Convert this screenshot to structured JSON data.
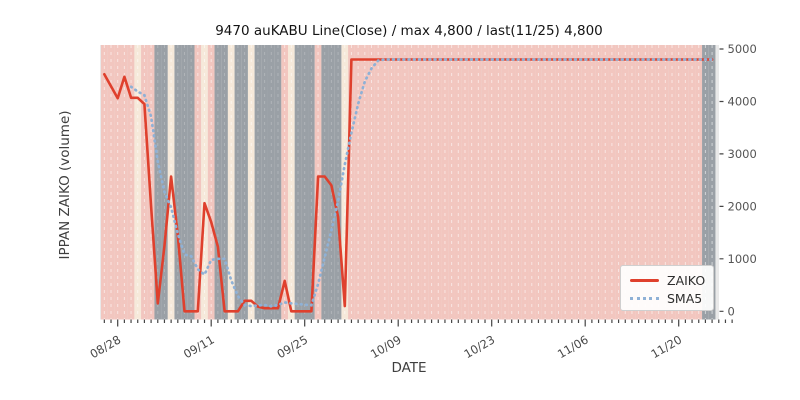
{
  "title": "9470 auKABU Line(Close) / max 4,800 / last(11/25) 4,800",
  "legend": {
    "position": "lower right",
    "items": [
      {
        "label": "ZAIKO",
        "style": "solid",
        "color": "#df402d"
      },
      {
        "label": "SMA5",
        "style": "dotted",
        "color": "#8fb1d6"
      }
    ]
  },
  "colors": {
    "band_pink": "#f2c6bf",
    "band_cream": "#f6e9da",
    "band_gray": "#9aa0a6",
    "plot_bg": "#e9e9e9",
    "gridline": "#ffffff",
    "zaiko_line": "#df402d",
    "sma5_line": "#8fb1d6",
    "tick": "#444444"
  },
  "chart_data": {
    "type": "line",
    "title": "9470 auKABU Line(Close) / max 4,800 / last(11/25) 4,800",
    "xlabel": "DATE",
    "ylabel": "IPPAN ZAIKO (volume)",
    "ylim": [
      0,
      5000
    ],
    "y_ticks": [
      0,
      1000,
      2000,
      3000,
      4000,
      5000
    ],
    "y_axis_side": "right",
    "x_major_ticks": [
      "08/28",
      "09/11",
      "09/25",
      "10/09",
      "10/23",
      "11/06",
      "11/20"
    ],
    "grid": "vertical-daily-white-dashed",
    "max_value": 4800,
    "last_date": "11/25",
    "last_value": 4800,
    "x": [
      "08/26",
      "08/27",
      "08/28",
      "08/29",
      "08/30",
      "08/31",
      "09/01",
      "09/02",
      "09/03",
      "09/04",
      "09/05",
      "09/06",
      "09/07",
      "09/08",
      "09/09",
      "09/10",
      "09/11",
      "09/12",
      "09/13",
      "09/14",
      "09/15",
      "09/16",
      "09/17",
      "09/18",
      "09/19",
      "09/20",
      "09/21",
      "09/22",
      "09/23",
      "09/24",
      "09/25",
      "09/26",
      "09/27",
      "09/28",
      "09/29",
      "09/30",
      "10/01",
      "10/02",
      "10/03",
      "10/04",
      "10/05",
      "10/06",
      "10/07",
      "10/08",
      "10/09",
      "10/10",
      "10/11",
      "10/12",
      "10/13",
      "10/14",
      "10/15",
      "10/16",
      "10/17",
      "10/18",
      "10/19",
      "10/20",
      "10/21",
      "10/22",
      "10/23",
      "10/24",
      "10/25",
      "10/26",
      "10/27",
      "10/28",
      "10/29",
      "10/30",
      "10/31",
      "11/01",
      "11/02",
      "11/03",
      "11/04",
      "11/05",
      "11/06",
      "11/07",
      "11/08",
      "11/09",
      "11/10",
      "11/11",
      "11/12",
      "11/13",
      "11/14",
      "11/15",
      "11/16",
      "11/17",
      "11/18",
      "11/19",
      "11/20",
      "11/21",
      "11/22",
      "11/23",
      "11/24",
      "11/25"
    ],
    "series": [
      {
        "name": "ZAIKO",
        "values": [
          4520,
          4290,
          4060,
          4470,
          4070,
          4070,
          3950,
          2000,
          150,
          1240,
          2570,
          1450,
          0,
          0,
          0,
          2060,
          1700,
          1230,
          0,
          0,
          0,
          200,
          200,
          90,
          60,
          60,
          60,
          580,
          0,
          0,
          0,
          0,
          2570,
          2570,
          2400,
          1800,
          100,
          4800,
          4800,
          4800,
          4800,
          4800,
          4800,
          4800,
          4800,
          4800,
          4800,
          4800,
          4800,
          4800,
          4800,
          4800,
          4800,
          4800,
          4800,
          4800,
          4800,
          4800,
          4800,
          4800,
          4800,
          4800,
          4800,
          4800,
          4800,
          4800,
          4800,
          4800,
          4800,
          4800,
          4800,
          4800,
          4800,
          4800,
          4800,
          4800,
          4800,
          4800,
          4800,
          4800,
          4800,
          4800,
          4800,
          4800,
          4800,
          4800,
          4800,
          4800,
          4800,
          4800,
          4800,
          4800
        ]
      },
      {
        "name": "SMA5",
        "values": [
          null,
          null,
          null,
          null,
          4280,
          4190,
          4120,
          3710,
          2850,
          2280,
          1980,
          1480,
          1080,
          1050,
          800,
          700,
          980,
          1000,
          1000,
          590,
          290,
          120,
          100,
          110,
          120,
          95,
          120,
          170,
          150,
          140,
          125,
          115,
          520,
          1030,
          1540,
          2100,
          2800,
          3400,
          3950,
          4380,
          4630,
          4780,
          4800,
          4800,
          4800,
          4800,
          4800,
          4800,
          4800,
          4800,
          4800,
          4800,
          4800,
          4800,
          4800,
          4800,
          4800,
          4800,
          4800,
          4800,
          4800,
          4800,
          4800,
          4800,
          4800,
          4800,
          4800,
          4800,
          4800,
          4800,
          4800,
          4800,
          4800,
          4800,
          4800,
          4800,
          4800,
          4800,
          4800,
          4800,
          4800,
          4800,
          4800,
          4800,
          4800,
          4800,
          4800,
          4800,
          4800,
          4800,
          4800,
          4800
        ]
      }
    ],
    "day_band_colors": "PPPPPCPPGGCGGGPCPGGCGGCGGGGPCGGGPGGGCPPPPPPPPPPPPPPPPPPPPPPPPPPPPPPPPPPPPPPPPPPPPPPPPPPPPP"
  }
}
